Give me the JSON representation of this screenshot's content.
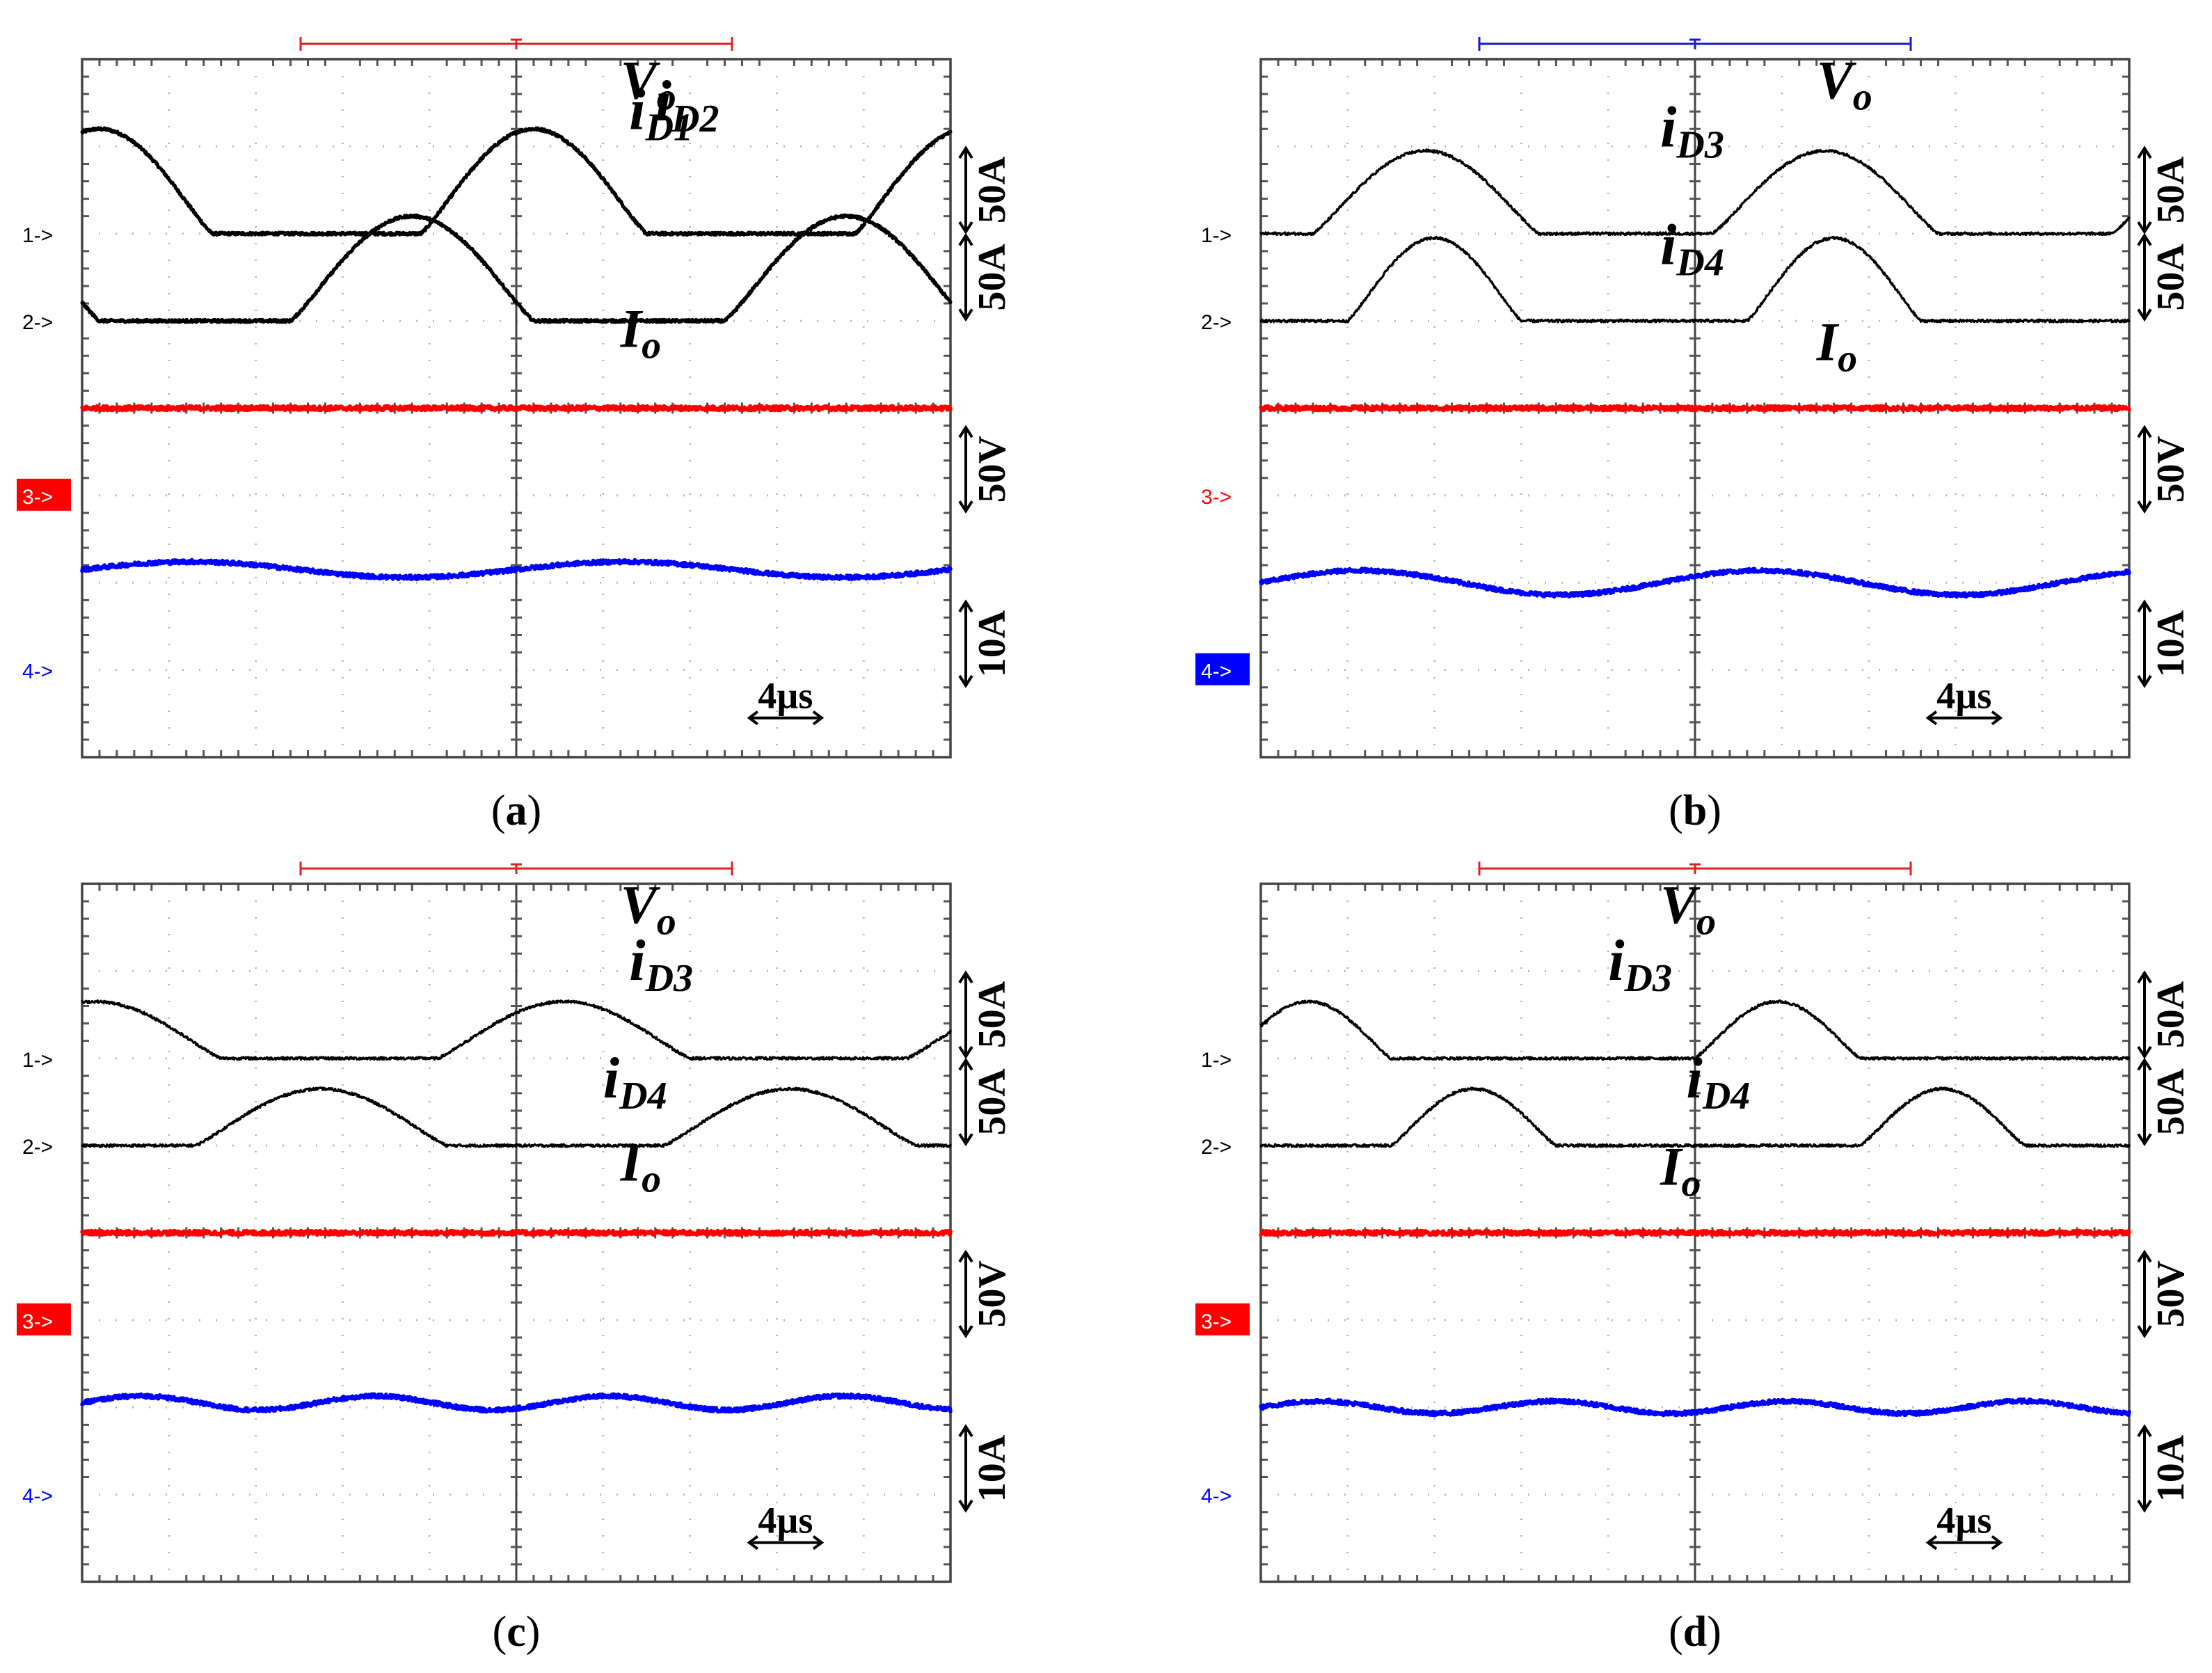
{
  "colors": {
    "black_trace": "#000000",
    "red_trace": "#ff0000",
    "blue_trace": "#0000ff",
    "grid": "#b8b8b8",
    "frame": "#444444",
    "trigger_red": "#e02020",
    "trigger_blue": "#1a1acc"
  },
  "chart_data": [
    {
      "type": "line",
      "panel": "a",
      "caption_open": "(",
      "caption_letter": "a",
      "caption_close": ")",
      "time_div_label": "4µs",
      "x_range_divisions": [
        0,
        10
      ],
      "y_range_divisions": [
        0,
        8
      ],
      "channel_markers": [
        {
          "text": "1->",
          "channel": 1,
          "style": "plain",
          "color": "#000000"
        },
        {
          "text": "2->",
          "channel": 2,
          "style": "plain",
          "color": "#000000"
        },
        {
          "text": "3->",
          "channel": 3,
          "style": "boxed",
          "color": "#ff0000"
        },
        {
          "text": "4->",
          "channel": 4,
          "style": "plain",
          "color": "#0000ff"
        }
      ],
      "scale_labels": [
        "50A",
        "50A",
        "50V",
        "10A"
      ],
      "trigger_bar_color": "#e02020",
      "series": [
        {
          "name": "i_D1",
          "label_main": "i",
          "label_sub": "D1",
          "channel": 1,
          "color": "#000000",
          "shape": "pulse",
          "baseline_div": 6,
          "peak_div": 1.2,
          "period_div": 5,
          "pulse_width_div": 2.6,
          "pulse_start_div": -1.1,
          "label_pos_div": [
            6.3,
            1.2
          ]
        },
        {
          "name": "i_D2",
          "label_main": "i",
          "label_sub": "D2",
          "channel": 2,
          "color": "#000000",
          "shape": "pulse",
          "baseline_div": 5,
          "peak_div": 1.2,
          "period_div": 5,
          "pulse_width_div": 2.8,
          "pulse_start_div": 2.4,
          "label_pos_div": [
            6.6,
            2.3
          ]
        },
        {
          "name": "V_o",
          "label_main": "V",
          "label_sub": "o",
          "channel": 3,
          "color": "#ff0000",
          "shape": "flat",
          "level_div": 4,
          "label_pos_div": [
            6.2,
            3.55
          ]
        },
        {
          "name": "I_o",
          "label_main": "I",
          "label_sub": "o",
          "channel": 4,
          "color": "#0000ff",
          "shape": "ripple",
          "level_div": 2.15,
          "ripple_div": 0.09,
          "period_div": 5,
          "label_pos_div": [
            6.2,
            2.55
          ]
        }
      ]
    },
    {
      "type": "line",
      "panel": "b",
      "caption_open": "(",
      "caption_letter": "b",
      "caption_close": ")",
      "time_div_label": "4µs",
      "x_range_divisions": [
        0,
        10
      ],
      "y_range_divisions": [
        0,
        8
      ],
      "channel_markers": [
        {
          "text": "1->",
          "channel": 1,
          "style": "plain",
          "color": "#000000"
        },
        {
          "text": "2->",
          "channel": 2,
          "style": "plain",
          "color": "#000000"
        },
        {
          "text": "3->",
          "channel": 3,
          "style": "plain",
          "color": "#ff0000"
        },
        {
          "text": "4->",
          "channel": 4,
          "style": "boxed",
          "color": "#0000ff"
        }
      ],
      "scale_labels": [
        "50A",
        "50A",
        "50V",
        "10A"
      ],
      "trigger_bar_color": "#1a1acc",
      "series": [
        {
          "name": "i_D3",
          "label_main": "i",
          "label_sub": "D3",
          "channel": 1,
          "color": "#000000",
          "shape": "pulse",
          "baseline_div": 6,
          "peak_div": 0.95,
          "period_div": 4.6,
          "pulse_width_div": 2.6,
          "pulse_start_div": 0.6,
          "label_pos_div": [
            4.6,
            1.0
          ]
        },
        {
          "name": "i_D4",
          "label_main": "i",
          "label_sub": "D4",
          "channel": 2,
          "color": "#000000",
          "shape": "pulse",
          "baseline_div": 5,
          "peak_div": 0.95,
          "period_div": 4.6,
          "pulse_width_div": 2.0,
          "pulse_start_div": 5.6,
          "label_pos_div": [
            4.6,
            0.65
          ]
        },
        {
          "name": "V_o",
          "label_main": "V",
          "label_sub": "o",
          "channel": 3,
          "color": "#ff0000",
          "shape": "flat",
          "level_div": 4,
          "label_pos_div": [
            6.4,
            3.55
          ]
        },
        {
          "name": "I_o",
          "label_main": "I",
          "label_sub": "o",
          "channel": 4,
          "color": "#0000ff",
          "shape": "ripple",
          "level_div": 2.0,
          "ripple_div": 0.14,
          "period_div": 4.6,
          "label_pos_div": [
            6.4,
            2.55
          ]
        }
      ]
    },
    {
      "type": "line",
      "panel": "c",
      "caption_open": "(",
      "caption_letter": "c",
      "caption_close": ")",
      "time_div_label": "4µs",
      "x_range_divisions": [
        0,
        10
      ],
      "y_range_divisions": [
        0,
        8
      ],
      "channel_markers": [
        {
          "text": "1->",
          "channel": 1,
          "style": "plain",
          "color": "#000000"
        },
        {
          "text": "2->",
          "channel": 2,
          "style": "plain",
          "color": "#000000"
        },
        {
          "text": "3->",
          "channel": 3,
          "style": "boxed",
          "color": "#ff0000"
        },
        {
          "text": "4->",
          "channel": 4,
          "style": "plain",
          "color": "#0000ff"
        }
      ],
      "scale_labels": [
        "50A",
        "50A",
        "50V",
        "10A"
      ],
      "trigger_bar_color": "#e02020",
      "series": [
        {
          "name": "i_D3",
          "label_main": "i",
          "label_sub": "D3",
          "channel": 1,
          "color": "#000000",
          "shape": "pulse",
          "baseline_div": 6,
          "peak_div": 0.65,
          "period_div": 5.4,
          "pulse_width_div": 2.9,
          "pulse_start_div": -1.3,
          "label_pos_div": [
            6.3,
            0.9
          ]
        },
        {
          "name": "i_D4",
          "label_main": "i",
          "label_sub": "D4",
          "channel": 2,
          "color": "#000000",
          "shape": "pulse",
          "baseline_div": 5,
          "peak_div": 0.65,
          "period_div": 5.4,
          "pulse_width_div": 2.9,
          "pulse_start_div": 1.3,
          "label_pos_div": [
            6.0,
            0.55
          ]
        },
        {
          "name": "V_o",
          "label_main": "V",
          "label_sub": "o",
          "channel": 3,
          "color": "#ff0000",
          "shape": "flat",
          "level_div": 4,
          "label_pos_div": [
            6.2,
            3.55
          ]
        },
        {
          "name": "I_o",
          "label_main": "I",
          "label_sub": "o",
          "channel": 4,
          "color": "#0000ff",
          "shape": "ripple",
          "level_div": 2.05,
          "ripple_div": 0.08,
          "period_div": 2.7,
          "label_pos_div": [
            6.2,
            2.55
          ]
        }
      ]
    },
    {
      "type": "line",
      "panel": "d",
      "caption_open": "(",
      "caption_letter": "d",
      "caption_close": ")",
      "time_div_label": "4µs",
      "x_range_divisions": [
        0,
        10
      ],
      "y_range_divisions": [
        0,
        8
      ],
      "channel_markers": [
        {
          "text": "1->",
          "channel": 1,
          "style": "plain",
          "color": "#000000"
        },
        {
          "text": "2->",
          "channel": 2,
          "style": "plain",
          "color": "#000000"
        },
        {
          "text": "3->",
          "channel": 3,
          "style": "boxed",
          "color": "#ff0000"
        },
        {
          "text": "4->",
          "channel": 4,
          "style": "plain",
          "color": "#0000ff"
        }
      ],
      "scale_labels": [
        "50A",
        "50A",
        "50V",
        "10A"
      ],
      "trigger_bar_color": "#e02020",
      "series": [
        {
          "name": "i_D3",
          "label_main": "i",
          "label_sub": "D3",
          "channel": 1,
          "color": "#000000",
          "shape": "pulse",
          "baseline_div": 6,
          "peak_div": 0.65,
          "period_div": 5.4,
          "pulse_width_div": 1.9,
          "pulse_start_div": -0.4,
          "label_pos_div": [
            4.0,
            0.9
          ]
        },
        {
          "name": "i_D4",
          "label_main": "i",
          "label_sub": "D4",
          "channel": 2,
          "color": "#000000",
          "shape": "pulse",
          "baseline_div": 5,
          "peak_div": 0.65,
          "period_div": 5.4,
          "pulse_width_div": 1.9,
          "pulse_start_div": 1.5,
          "label_pos_div": [
            4.9,
            0.55
          ]
        },
        {
          "name": "V_o",
          "label_main": "V",
          "label_sub": "o",
          "channel": 3,
          "color": "#ff0000",
          "shape": "flat",
          "level_div": 4,
          "label_pos_div": [
            4.6,
            3.55
          ]
        },
        {
          "name": "I_o",
          "label_main": "I",
          "label_sub": "o",
          "channel": 4,
          "color": "#0000ff",
          "shape": "ripple",
          "level_div": 2.0,
          "ripple_div": 0.07,
          "period_div": 2.7,
          "label_pos_div": [
            4.6,
            2.55
          ]
        }
      ]
    }
  ]
}
